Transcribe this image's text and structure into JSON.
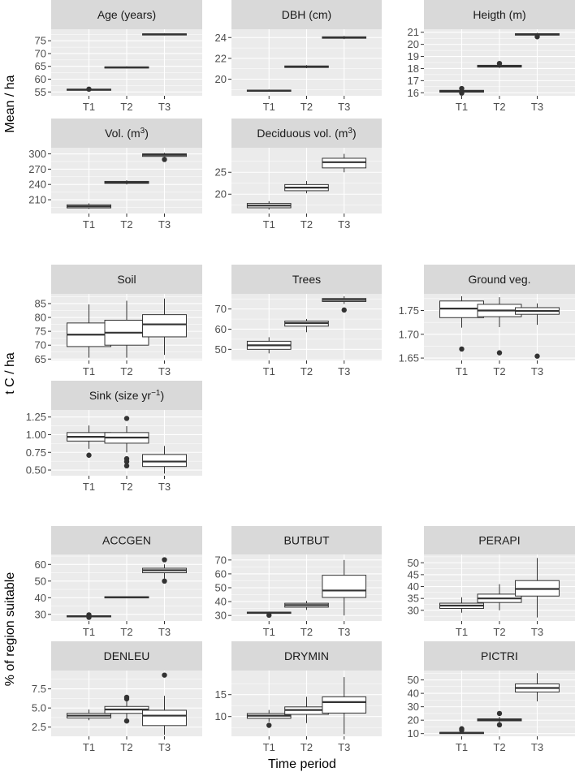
{
  "figure": {
    "x_axis_title": "Time period",
    "colors": {
      "panel": "#ebebeb",
      "strip": "#d9d9d9",
      "box_line": "#333333",
      "box_fill": "#ffffff"
    }
  },
  "chart_data": [
    {
      "type": "boxplot",
      "group": "Mean / ha",
      "title": "Age (years)",
      "title_parts": [
        {
          "t": "Age (years)"
        }
      ],
      "categories": [
        "T1",
        "T2",
        "T3"
      ],
      "ylim": [
        53.5,
        79.5
      ],
      "yticks": [
        55,
        60,
        65,
        70,
        75
      ],
      "boxes": [
        {
          "whisker_low": 55.5,
          "q1": 55.7,
          "median": 55.9,
          "q3": 56.1,
          "whisker_high": 56.3,
          "outliers": [
            56.1
          ]
        },
        {
          "whisker_low": 64.2,
          "q1": 64.4,
          "median": 64.6,
          "q3": 64.8,
          "whisker_high": 65.0,
          "outliers": []
        },
        {
          "whisker_low": 77.1,
          "q1": 77.3,
          "median": 77.5,
          "q3": 77.7,
          "whisker_high": 77.9,
          "outliers": []
        }
      ]
    },
    {
      "type": "boxplot",
      "group": "Mean / ha",
      "title": "DBH (cm)",
      "title_parts": [
        {
          "t": "DBH (cm)"
        }
      ],
      "categories": [
        "T1",
        "T2",
        "T3"
      ],
      "ylim": [
        18.4,
        24.8
      ],
      "yticks": [
        20,
        22,
        24
      ],
      "boxes": [
        {
          "whisker_low": 18.8,
          "q1": 18.85,
          "median": 18.9,
          "q3": 18.95,
          "whisker_high": 19.0,
          "outliers": []
        },
        {
          "whisker_low": 21.05,
          "q1": 21.12,
          "median": 21.2,
          "q3": 21.27,
          "whisker_high": 21.35,
          "outliers": []
        },
        {
          "whisker_low": 23.85,
          "q1": 23.93,
          "median": 24.0,
          "q3": 24.07,
          "whisker_high": 24.15,
          "outliers": []
        }
      ]
    },
    {
      "type": "boxplot",
      "group": "Mean / ha",
      "title": "Heigth (m)",
      "title_parts": [
        {
          "t": "Heigth (m)"
        }
      ],
      "categories": [
        "T1",
        "T2",
        "T3"
      ],
      "ylim": [
        15.75,
        21.25
      ],
      "yticks": [
        16,
        17,
        18,
        19,
        20,
        21
      ],
      "boxes": [
        {
          "whisker_low": 15.95,
          "q1": 16.05,
          "median": 16.12,
          "q3": 16.2,
          "whisker_high": 16.3,
          "outliers": [
            16.35,
            15.97
          ]
        },
        {
          "whisker_low": 18.05,
          "q1": 18.12,
          "median": 18.2,
          "q3": 18.27,
          "whisker_high": 18.35,
          "outliers": [
            18.42
          ]
        },
        {
          "whisker_low": 20.7,
          "q1": 20.76,
          "median": 20.82,
          "q3": 20.88,
          "whisker_high": 20.95,
          "outliers": [
            20.63
          ]
        }
      ]
    },
    {
      "type": "boxplot",
      "group": "Mean / ha",
      "title": "Vol. (m3)",
      "title_parts": [
        {
          "t": "Vol. (m"
        },
        {
          "t": "3",
          "sup": true
        },
        {
          "t": ")"
        }
      ],
      "categories": [
        "T1",
        "T2",
        "T3"
      ],
      "ylim": [
        183,
        312
      ],
      "yticks": [
        210,
        240,
        270,
        300
      ],
      "boxes": [
        {
          "whisker_low": 192,
          "q1": 194,
          "median": 197,
          "q3": 200,
          "whisker_high": 203,
          "outliers": []
        },
        {
          "whisker_low": 240,
          "q1": 242,
          "median": 244,
          "q3": 246,
          "whisker_high": 248,
          "outliers": []
        },
        {
          "whisker_low": 292,
          "q1": 295,
          "median": 298,
          "q3": 300,
          "whisker_high": 302,
          "outliers": [
            289
          ]
        }
      ]
    },
    {
      "type": "boxplot",
      "group": "Mean / ha",
      "title": "Deciduous vol. (m3)",
      "title_parts": [
        {
          "t": "Deciduous vol. (m"
        },
        {
          "t": "3",
          "sup": true
        },
        {
          "t": ")"
        }
      ],
      "categories": [
        "T1",
        "T2",
        "T3"
      ],
      "ylim": [
        15.6,
        30.6
      ],
      "yticks": [
        20,
        25
      ],
      "boxes": [
        {
          "whisker_low": 16.5,
          "q1": 16.9,
          "median": 17.4,
          "q3": 17.9,
          "whisker_high": 18.4,
          "outliers": []
        },
        {
          "whisker_low": 20.2,
          "q1": 20.8,
          "median": 21.5,
          "q3": 22.2,
          "whisker_high": 23.0,
          "outliers": []
        },
        {
          "whisker_low": 25.0,
          "q1": 26.0,
          "median": 27.3,
          "q3": 28.2,
          "whisker_high": 29.2,
          "outliers": []
        }
      ]
    },
    {
      "type": "boxplot",
      "group": "t C / ha",
      "title": "Soil",
      "title_parts": [
        {
          "t": "Soil"
        }
      ],
      "categories": [
        "T1",
        "T2",
        "T3"
      ],
      "ylim": [
        64.5,
        88.5
      ],
      "yticks": [
        65,
        70,
        75,
        80,
        85
      ],
      "boxes": [
        {
          "whisker_low": 65.5,
          "q1": 69.5,
          "median": 73.8,
          "q3": 78.0,
          "whisker_high": 84.7,
          "outliers": []
        },
        {
          "whisker_low": 65.5,
          "q1": 70.0,
          "median": 74.5,
          "q3": 79.0,
          "whisker_high": 86.0,
          "outliers": []
        },
        {
          "whisker_low": 66.5,
          "q1": 73.0,
          "median": 77.5,
          "q3": 81.0,
          "whisker_high": 86.8,
          "outliers": []
        }
      ]
    },
    {
      "type": "boxplot",
      "group": "t C / ha",
      "title": "Trees",
      "title_parts": [
        {
          "t": "Trees"
        }
      ],
      "categories": [
        "T1",
        "T2",
        "T3"
      ],
      "ylim": [
        44.5,
        77.5
      ],
      "yticks": [
        50,
        60,
        70
      ],
      "boxes": [
        {
          "whisker_low": 48.0,
          "q1": 50.0,
          "median": 52.0,
          "q3": 54.0,
          "whisker_high": 56.0,
          "outliers": []
        },
        {
          "whisker_low": 58.5,
          "q1": 61.5,
          "median": 63.0,
          "q3": 64.0,
          "whisker_high": 65.0,
          "outliers": []
        },
        {
          "whisker_low": 72.5,
          "q1": 73.7,
          "median": 74.5,
          "q3": 75.2,
          "whisker_high": 76.3,
          "outliers": [
            69.5
          ]
        }
      ]
    },
    {
      "type": "boxplot",
      "group": "t C / ha",
      "title": "Ground veg.",
      "title_parts": [
        {
          "t": "Ground veg."
        }
      ],
      "categories": [
        "T1",
        "T2",
        "T3"
      ],
      "ylim": [
        1.645,
        1.785
      ],
      "yticks": [
        1.65,
        1.7,
        1.75
      ],
      "boxes": [
        {
          "whisker_low": 1.714,
          "q1": 1.735,
          "median": 1.754,
          "q3": 1.77,
          "whisker_high": 1.78,
          "outliers": [
            1.669
          ]
        },
        {
          "whisker_low": 1.715,
          "q1": 1.737,
          "median": 1.75,
          "q3": 1.763,
          "whisker_high": 1.778,
          "outliers": [
            1.661
          ]
        },
        {
          "whisker_low": 1.72,
          "q1": 1.742,
          "median": 1.749,
          "q3": 1.756,
          "whisker_high": 1.765,
          "outliers": [
            1.654
          ]
        }
      ]
    },
    {
      "type": "boxplot",
      "group": "t C / ha",
      "title": "Sink (size yr-1)",
      "title_parts": [
        {
          "t": "Sink (size yr"
        },
        {
          "t": "−1",
          "sup": true
        },
        {
          "t": ")"
        }
      ],
      "categories": [
        "T1",
        "T2",
        "T3"
      ],
      "ylim": [
        0.42,
        1.35
      ],
      "yticks": [
        0.5,
        0.75,
        1.0,
        1.25
      ],
      "boxes": [
        {
          "whisker_low": 0.8,
          "q1": 0.91,
          "median": 0.97,
          "q3": 1.03,
          "whisker_high": 1.13,
          "outliers": [
            0.71
          ]
        },
        {
          "whisker_low": 0.75,
          "q1": 0.88,
          "median": 0.96,
          "q3": 1.03,
          "whisker_high": 1.12,
          "outliers": [
            1.23,
            0.66,
            0.62,
            0.56
          ]
        },
        {
          "whisker_low": 0.45,
          "q1": 0.55,
          "median": 0.62,
          "q3": 0.72,
          "whisker_high": 0.84,
          "outliers": []
        }
      ]
    },
    {
      "type": "boxplot",
      "group": "% of region suitable",
      "title": "ACCGEN",
      "title_parts": [
        {
          "t": "ACCGEN"
        }
      ],
      "categories": [
        "T1",
        "T2",
        "T3"
      ],
      "ylim": [
        26.0,
        66.0
      ],
      "yticks": [
        30,
        40,
        50,
        60
      ],
      "boxes": [
        {
          "whisker_low": 28.3,
          "q1": 28.6,
          "median": 28.9,
          "q3": 29.2,
          "whisker_high": 29.5,
          "outliers": [
            29.7,
            28.2
          ]
        },
        {
          "whisker_low": 39.8,
          "q1": 40.0,
          "median": 40.3,
          "q3": 40.6,
          "whisker_high": 40.8,
          "outliers": []
        },
        {
          "whisker_low": 51.5,
          "q1": 55.0,
          "median": 56.5,
          "q3": 57.7,
          "whisker_high": 60.0,
          "outliers": [
            62.8,
            50.0
          ]
        }
      ]
    },
    {
      "type": "boxplot",
      "group": "% of region suitable",
      "title": "BUTBUT",
      "title_parts": [
        {
          "t": "BUTBUT"
        }
      ],
      "categories": [
        "T1",
        "T2",
        "T3"
      ],
      "ylim": [
        26.0,
        74.0
      ],
      "yticks": [
        30,
        40,
        50,
        60,
        70
      ],
      "boxes": [
        {
          "whisker_low": 31.2,
          "q1": 31.6,
          "median": 32.0,
          "q3": 32.4,
          "whisker_high": 32.8,
          "outliers": [
            30.2
          ]
        },
        {
          "whisker_low": 34.0,
          "q1": 36.0,
          "median": 37.5,
          "q3": 38.8,
          "whisker_high": 40.5,
          "outliers": []
        },
        {
          "whisker_low": 30.0,
          "q1": 43.0,
          "median": 48.0,
          "q3": 59.0,
          "whisker_high": 70.0,
          "outliers": []
        }
      ]
    },
    {
      "type": "boxplot",
      "group": "% of region suitable",
      "title": "PERAPI",
      "title_parts": [
        {
          "t": "PERAPI"
        }
      ],
      "categories": [
        "T1",
        "T2",
        "T3"
      ],
      "ylim": [
        25.5,
        53.5
      ],
      "yticks": [
        30,
        35,
        40,
        45,
        50
      ],
      "boxes": [
        {
          "whisker_low": 29.0,
          "q1": 30.8,
          "median": 32.0,
          "q3": 33.0,
          "whisker_high": 35.5,
          "outliers": []
        },
        {
          "whisker_low": 30.0,
          "q1": 33.3,
          "median": 35.0,
          "q3": 36.8,
          "whisker_high": 41.0,
          "outliers": []
        },
        {
          "whisker_low": 27.0,
          "q1": 36.0,
          "median": 39.0,
          "q3": 42.5,
          "whisker_high": 52.0,
          "outliers": []
        }
      ]
    },
    {
      "type": "boxplot",
      "group": "% of region suitable",
      "title": "DENLEU",
      "title_parts": [
        {
          "t": "DENLEU"
        }
      ],
      "categories": [
        "T1",
        "T2",
        "T3"
      ],
      "ylim": [
        1.3,
        9.9
      ],
      "yticks": [
        2.5,
        5.0,
        7.5
      ],
      "boxes": [
        {
          "whisker_low": 3.4,
          "q1": 3.7,
          "median": 4.0,
          "q3": 4.3,
          "whisker_high": 4.8,
          "outliers": []
        },
        {
          "whisker_low": 3.6,
          "q1": 4.3,
          "median": 4.8,
          "q3": 5.2,
          "whisker_high": 6.0,
          "outliers": [
            6.4,
            6.2,
            3.3
          ]
        },
        {
          "whisker_low": 1.5,
          "q1": 2.7,
          "median": 4.0,
          "q3": 4.7,
          "whisker_high": 6.6,
          "outliers": [
            9.3
          ]
        }
      ]
    },
    {
      "type": "boxplot",
      "group": "% of region suitable",
      "title": "DRYMIN",
      "title_parts": [
        {
          "t": "DRYMIN"
        }
      ],
      "categories": [
        "T1",
        "T2",
        "T3"
      ],
      "ylim": [
        5.5,
        20.5
      ],
      "yticks": [
        10,
        15
      ],
      "boxes": [
        {
          "whisker_low": 8.8,
          "q1": 9.6,
          "median": 10.2,
          "q3": 10.7,
          "whisker_high": 11.5,
          "outliers": [
            8.0
          ]
        },
        {
          "whisker_low": 8.5,
          "q1": 10.5,
          "median": 11.5,
          "q3": 12.2,
          "whisker_high": 14.5,
          "outliers": []
        },
        {
          "whisker_low": 6.0,
          "q1": 10.8,
          "median": 13.3,
          "q3": 14.5,
          "whisker_high": 19.0,
          "outliers": []
        }
      ]
    },
    {
      "type": "boxplot",
      "group": "% of region suitable",
      "title": "PICTRI",
      "title_parts": [
        {
          "t": "PICTRI"
        }
      ],
      "categories": [
        "T1",
        "T2",
        "T3"
      ],
      "ylim": [
        8.0,
        57.0
      ],
      "yticks": [
        10,
        20,
        30,
        40,
        50
      ],
      "boxes": [
        {
          "whisker_low": 10.0,
          "q1": 10.3,
          "median": 10.6,
          "q3": 10.9,
          "whisker_high": 11.5,
          "outliers": [
            13.6,
            12.5
          ]
        },
        {
          "whisker_low": 18.0,
          "q1": 19.5,
          "median": 20.3,
          "q3": 21.0,
          "whisker_high": 22.5,
          "outliers": [
            25.0,
            16.5
          ]
        },
        {
          "whisker_low": 34.0,
          "q1": 41.0,
          "median": 44.0,
          "q3": 47.0,
          "whisker_high": 55.0,
          "outliers": []
        }
      ]
    }
  ]
}
